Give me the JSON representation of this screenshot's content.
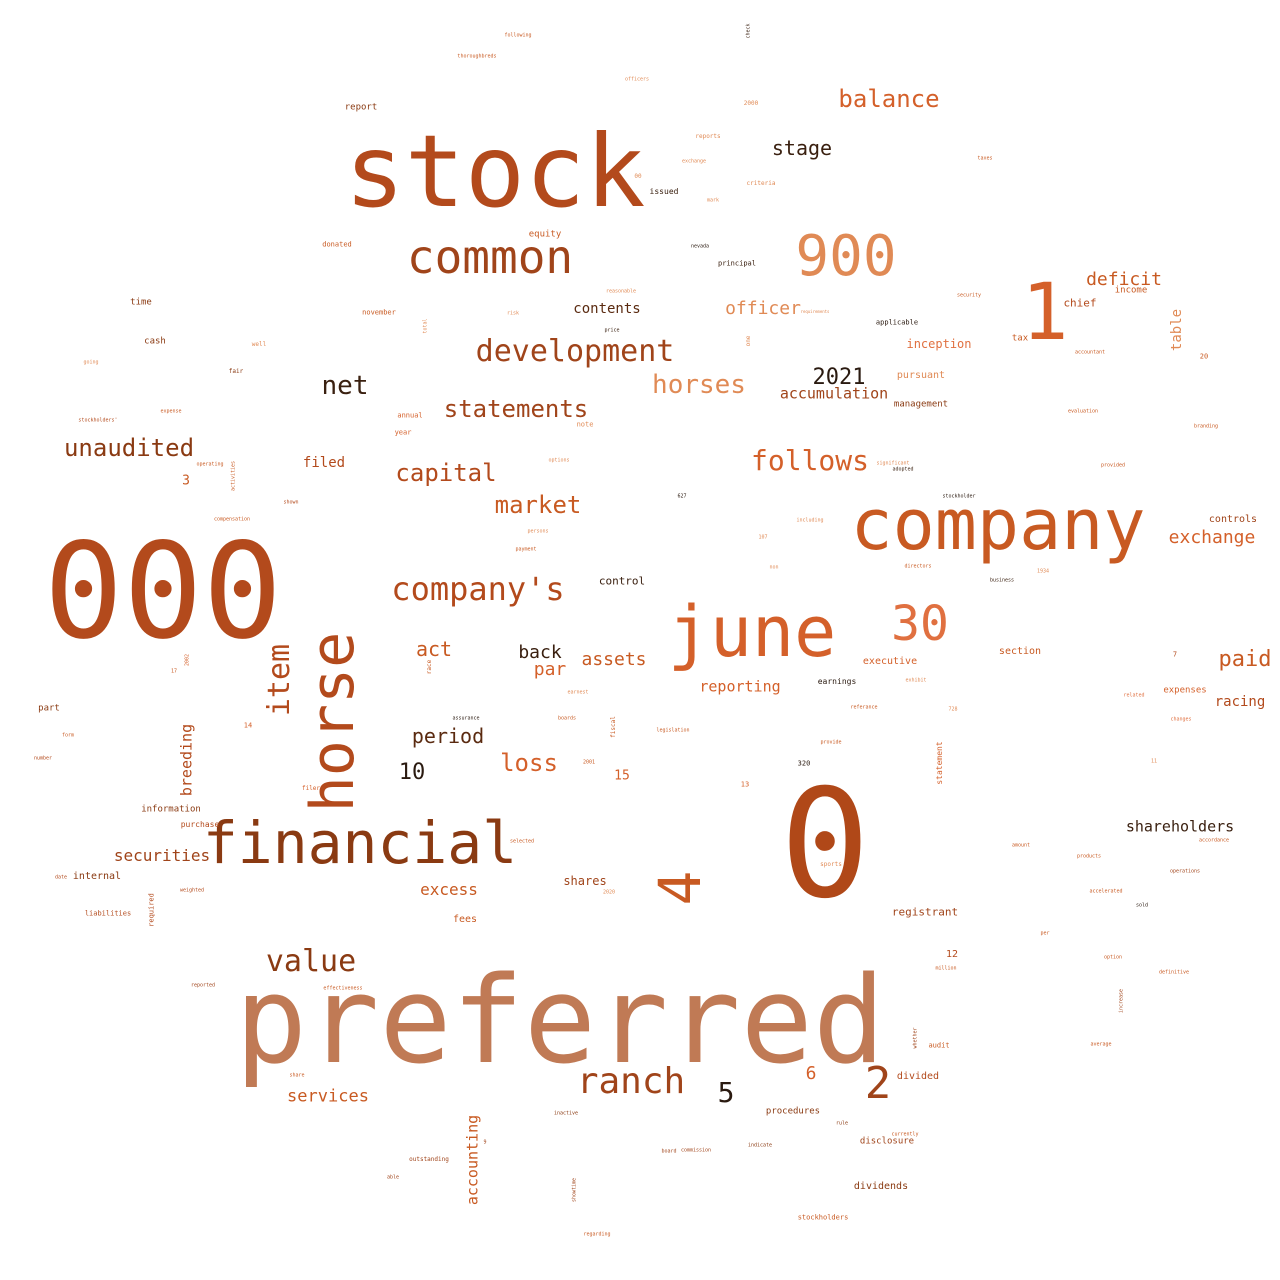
{
  "words": [
    {
      "text": "stock",
      "color": "#b34a1c"
    },
    {
      "text": "000",
      "color": "#b34a1c"
    },
    {
      "text": "preferred",
      "color": "#c07a55"
    },
    {
      "text": "company",
      "color": "#c85a22"
    },
    {
      "text": "0",
      "color": "#b04818"
    },
    {
      "text": "june",
      "color": "#d4602a"
    },
    {
      "text": "financial",
      "color": "#8a3a12"
    },
    {
      "text": "horse",
      "color": "#b34a1c",
      "vertical": true
    },
    {
      "text": "common",
      "color": "#a0441a"
    },
    {
      "text": "900",
      "color": "#e08a55"
    },
    {
      "text": "1",
      "color": "#d4602a"
    },
    {
      "text": "30",
      "color": "#e07040"
    },
    {
      "text": "4",
      "color": "#c85a22",
      "vertical": true
    },
    {
      "text": "development",
      "color": "#a0441a"
    },
    {
      "text": "company's",
      "color": "#b34a1c"
    },
    {
      "text": "ranch",
      "color": "#a0441a"
    },
    {
      "text": "value",
      "color": "#8a3a12"
    },
    {
      "text": "balance",
      "color": "#d4602a"
    },
    {
      "text": "horses",
      "color": "#e08a55"
    },
    {
      "text": "statements",
      "color": "#a0441a"
    },
    {
      "text": "follows",
      "color": "#d4602a"
    },
    {
      "text": "unaudited",
      "color": "#8a3a12"
    },
    {
      "text": "item",
      "color": "#b34a1c",
      "vertical": true
    },
    {
      "text": "capital",
      "color": "#b34a1c"
    },
    {
      "text": "market",
      "color": "#c85a22"
    },
    {
      "text": "2",
      "color": "#a0441a"
    },
    {
      "text": "5",
      "color": "#2a1a10"
    },
    {
      "text": "net",
      "color": "#3a2010"
    },
    {
      "text": "2021",
      "color": "#2a1a10"
    },
    {
      "text": "stage",
      "color": "#3a2010"
    },
    {
      "text": "deficit",
      "color": "#c85a22"
    },
    {
      "text": "officer",
      "color": "#e08a55"
    },
    {
      "text": "exchange",
      "color": "#d4602a"
    },
    {
      "text": "paid",
      "color": "#c85a22"
    },
    {
      "text": "loss",
      "color": "#d4602a"
    },
    {
      "text": "period",
      "color": "#5a2a10"
    },
    {
      "text": "act",
      "color": "#c85a22"
    },
    {
      "text": "10",
      "color": "#2a1a10"
    },
    {
      "text": "shareholders",
      "color": "#3a2010"
    },
    {
      "text": "accumulation",
      "color": "#a0441a"
    },
    {
      "text": "services",
      "color": "#c85a22"
    },
    {
      "text": "securities",
      "color": "#a0441a"
    },
    {
      "text": "assets",
      "color": "#c85a22"
    },
    {
      "text": "back",
      "color": "#3a2010"
    },
    {
      "text": "par",
      "color": "#d4602a"
    },
    {
      "text": "reporting",
      "color": "#d4602a"
    },
    {
      "text": "excess",
      "color": "#c85a22"
    },
    {
      "text": "accounting",
      "color": "#c85a22",
      "vertical": true
    },
    {
      "text": "breeding",
      "color": "#b34a1c",
      "vertical": true
    },
    {
      "text": "contents",
      "color": "#5a2a10"
    },
    {
      "text": "racing",
      "color": "#b34a1c"
    },
    {
      "text": "6",
      "color": "#d4602a"
    },
    {
      "text": "table",
      "color": "#e08a55",
      "vertical": true
    },
    {
      "text": "filed",
      "color": "#b34a1c"
    },
    {
      "text": "inception",
      "color": "#e07040"
    },
    {
      "text": "chief",
      "color": "#b34a1c"
    },
    {
      "text": "control",
      "color": "#3a2010"
    },
    {
      "text": "shares",
      "color": "#a0441a"
    },
    {
      "text": "registrant",
      "color": "#a0441a"
    },
    {
      "text": "divided",
      "color": "#b34a1c"
    },
    {
      "text": "dividends",
      "color": "#8a3a12"
    },
    {
      "text": "disclosure",
      "color": "#a0441a"
    },
    {
      "text": "procedures",
      "color": "#8a3a12"
    },
    {
      "text": "executive",
      "color": "#d4602a"
    },
    {
      "text": "section",
      "color": "#c85a22"
    },
    {
      "text": "controls",
      "color": "#a0441a"
    },
    {
      "text": "income",
      "color": "#c85a22"
    },
    {
      "text": "expenses",
      "color": "#d4602a"
    },
    {
      "text": "management",
      "color": "#8a3a12"
    },
    {
      "text": "pursuant",
      "color": "#e08a55"
    },
    {
      "text": "fees",
      "color": "#c85a22"
    },
    {
      "text": "internal",
      "color": "#8a3a12"
    },
    {
      "text": "information",
      "color": "#8a3a12"
    },
    {
      "text": "purchase",
      "color": "#b34a1c"
    },
    {
      "text": "report",
      "color": "#8a3a12"
    },
    {
      "text": "equity",
      "color": "#c85a22"
    },
    {
      "text": "issued",
      "color": "#3a2010"
    },
    {
      "text": "principal",
      "color": "#3a2010"
    },
    {
      "text": "applicable",
      "color": "#2a1a10"
    },
    {
      "text": "cash",
      "color": "#8a3a12"
    },
    {
      "text": "time",
      "color": "#8a3a12"
    },
    {
      "text": "part",
      "color": "#8a3a12"
    },
    {
      "text": "3",
      "color": "#c85a22"
    },
    {
      "text": "15",
      "color": "#d4602a"
    },
    {
      "text": "12",
      "color": "#b34a1c"
    },
    {
      "text": "tax",
      "color": "#c85a22"
    },
    {
      "text": "earnings",
      "color": "#2a1a10"
    },
    {
      "text": "donated",
      "color": "#c85a22"
    },
    {
      "text": "november",
      "color": "#c85a22"
    },
    {
      "text": "annual",
      "color": "#d4602a"
    },
    {
      "text": "year",
      "color": "#d4602a"
    },
    {
      "text": "note",
      "color": "#e08a55"
    },
    {
      "text": "liabilities",
      "color": "#b34a1c"
    },
    {
      "text": "required",
      "color": "#b34a1c",
      "vertical": true
    },
    {
      "text": "statement",
      "color": "#d4602a",
      "vertical": true
    },
    {
      "text": "audit",
      "color": "#c85a22"
    },
    {
      "text": "stockholders",
      "color": "#c85a22"
    },
    {
      "text": "outstanding",
      "color": "#a0441a"
    },
    {
      "text": "filer",
      "color": "#d4602a"
    },
    {
      "text": "fair",
      "color": "#8a3a12"
    },
    {
      "text": "well",
      "color": "#e08a55"
    },
    {
      "text": "2000",
      "color": "#e08a55"
    },
    {
      "text": "criteria",
      "color": "#e08a55"
    },
    {
      "text": "reports",
      "color": "#e08a55"
    },
    {
      "text": "14",
      "color": "#d4602a"
    },
    {
      "text": "13",
      "color": "#d4602a"
    },
    {
      "text": "20",
      "color": "#c85a22"
    },
    {
      "text": "7",
      "color": "#b34a1c"
    },
    {
      "text": "320",
      "color": "#2a1a10"
    },
    {
      "text": "rule",
      "color": "#8a3a12"
    },
    {
      "text": "indicate",
      "color": "#8a3a12"
    },
    {
      "text": "inactive",
      "color": "#8a3a12"
    },
    {
      "text": "provide",
      "color": "#c85a22"
    },
    {
      "text": "related",
      "color": "#e07040"
    },
    {
      "text": "changes",
      "color": "#e07040"
    },
    {
      "text": "operations",
      "color": "#a0441a"
    },
    {
      "text": "products",
      "color": "#c85a22"
    },
    {
      "text": "sold",
      "color": "#2a1a10"
    },
    {
      "text": "stockholder",
      "color": "#2a1a10"
    },
    {
      "text": "business",
      "color": "#3a2010"
    },
    {
      "text": "directors",
      "color": "#c85a22"
    },
    {
      "text": "fiscal",
      "color": "#c85a22",
      "vertical": true
    },
    {
      "text": "race",
      "color": "#c85a22",
      "vertical": true
    },
    {
      "text": "check",
      "color": "#3a2010",
      "vertical": true
    },
    {
      "text": "nevada",
      "color": "#2a1a10"
    },
    {
      "text": "00",
      "color": "#e08a55"
    },
    {
      "text": "one",
      "color": "#e08a55",
      "vertical": true
    },
    {
      "text": "total",
      "color": "#e08a55",
      "vertical": true
    },
    {
      "text": "activities",
      "color": "#c85a22",
      "vertical": true
    },
    {
      "text": "shown",
      "color": "#b34a1c"
    },
    {
      "text": "operating",
      "color": "#c85a22"
    },
    {
      "text": "2002",
      "color": "#d4602a",
      "vertical": true
    },
    {
      "text": "2020",
      "color": "#e08a55"
    },
    {
      "text": "board",
      "color": "#a0441a"
    },
    {
      "text": "assurance",
      "color": "#2a1a10"
    },
    {
      "text": "referance",
      "color": "#c85a22"
    },
    {
      "text": "627",
      "color": "#2a1a10"
    },
    {
      "text": "increase",
      "color": "#a0441a",
      "vertical": true
    },
    {
      "text": "11",
      "color": "#e08a55"
    },
    {
      "text": "1934",
      "color": "#e08a55"
    },
    {
      "text": "following",
      "color": "#c85a22"
    },
    {
      "text": "thoroughbreds",
      "color": "#c85a22"
    },
    {
      "text": "officers",
      "color": "#e08a55"
    },
    {
      "text": "taxes",
      "color": "#c85a22"
    },
    {
      "text": "mark",
      "color": "#e08a55"
    },
    {
      "text": "security",
      "color": "#c85a22"
    },
    {
      "text": "per",
      "color": "#c85a22"
    },
    {
      "text": "expense",
      "color": "#c85a22"
    },
    {
      "text": "going",
      "color": "#e08a55"
    },
    {
      "text": "stockholders'",
      "color": "#b34a1c"
    },
    {
      "text": "compensation",
      "color": "#c85a22"
    },
    {
      "text": "form",
      "color": "#c85a22"
    },
    {
      "text": "number",
      "color": "#b34a1c"
    },
    {
      "text": "date",
      "color": "#b34a1c"
    },
    {
      "text": "weighted",
      "color": "#b34a1c"
    },
    {
      "text": "reported",
      "color": "#a0441a"
    },
    {
      "text": "able",
      "color": "#a0441a"
    },
    {
      "text": "share",
      "color": "#c85a22"
    },
    {
      "text": "regarding",
      "color": "#c85a22"
    },
    {
      "text": "sports",
      "color": "#e08a55"
    },
    {
      "text": "selected",
      "color": "#c85a22"
    },
    {
      "text": "provided",
      "color": "#c85a22"
    },
    {
      "text": "currently",
      "color": "#c85a22"
    },
    {
      "text": "accelerated",
      "color": "#c85a22"
    },
    {
      "text": "option",
      "color": "#c85a22"
    },
    {
      "text": "average",
      "color": "#c85a22"
    },
    {
      "text": "options",
      "color": "#e08a55"
    },
    {
      "text": "persons",
      "color": "#e08a55"
    },
    {
      "text": "payment",
      "color": "#c85a22"
    },
    {
      "text": "reasonable",
      "color": "#e08a55"
    },
    {
      "text": "requirements",
      "color": "#e08a55"
    },
    {
      "text": "including",
      "color": "#e08a55"
    },
    {
      "text": "significant",
      "color": "#e08a55"
    },
    {
      "text": "adopted",
      "color": "#3a2010"
    },
    {
      "text": "price",
      "color": "#3a2010"
    },
    {
      "text": "risk",
      "color": "#e08a55"
    },
    {
      "text": "evaluation",
      "color": "#c85a22"
    },
    {
      "text": "branding",
      "color": "#c85a22"
    },
    {
      "text": "accordance",
      "color": "#c85a22"
    },
    {
      "text": "commission",
      "color": "#a0441a"
    },
    {
      "text": "showtime",
      "color": "#a0441a",
      "vertical": true
    },
    {
      "text": "whether",
      "color": "#a0441a",
      "vertical": true
    },
    {
      "text": "definitive",
      "color": "#c85a22"
    },
    {
      "text": "exchange",
      "color": "#e08a55"
    },
    {
      "text": "non",
      "color": "#e08a55"
    },
    {
      "text": "amount",
      "color": "#c85a22"
    },
    {
      "text": "legislation",
      "color": "#c85a22"
    },
    {
      "text": "effectiveness",
      "color": "#c85a22"
    },
    {
      "text": "million",
      "color": "#c85a22"
    },
    {
      "text": "9",
      "color": "#a0441a"
    },
    {
      "text": "17",
      "color": "#c85a22"
    },
    {
      "text": "728",
      "color": "#e08a55"
    },
    {
      "text": "107",
      "color": "#e08a55"
    },
    {
      "text": "2001",
      "color": "#c85a22"
    },
    {
      "text": "earnest",
      "color": "#e08a55"
    },
    {
      "text": "accountant",
      "color": "#c85a22"
    },
    {
      "text": "exhibit",
      "color": "#e08a55"
    },
    {
      "text": "boards",
      "color": "#c85a22"
    }
  ]
}
